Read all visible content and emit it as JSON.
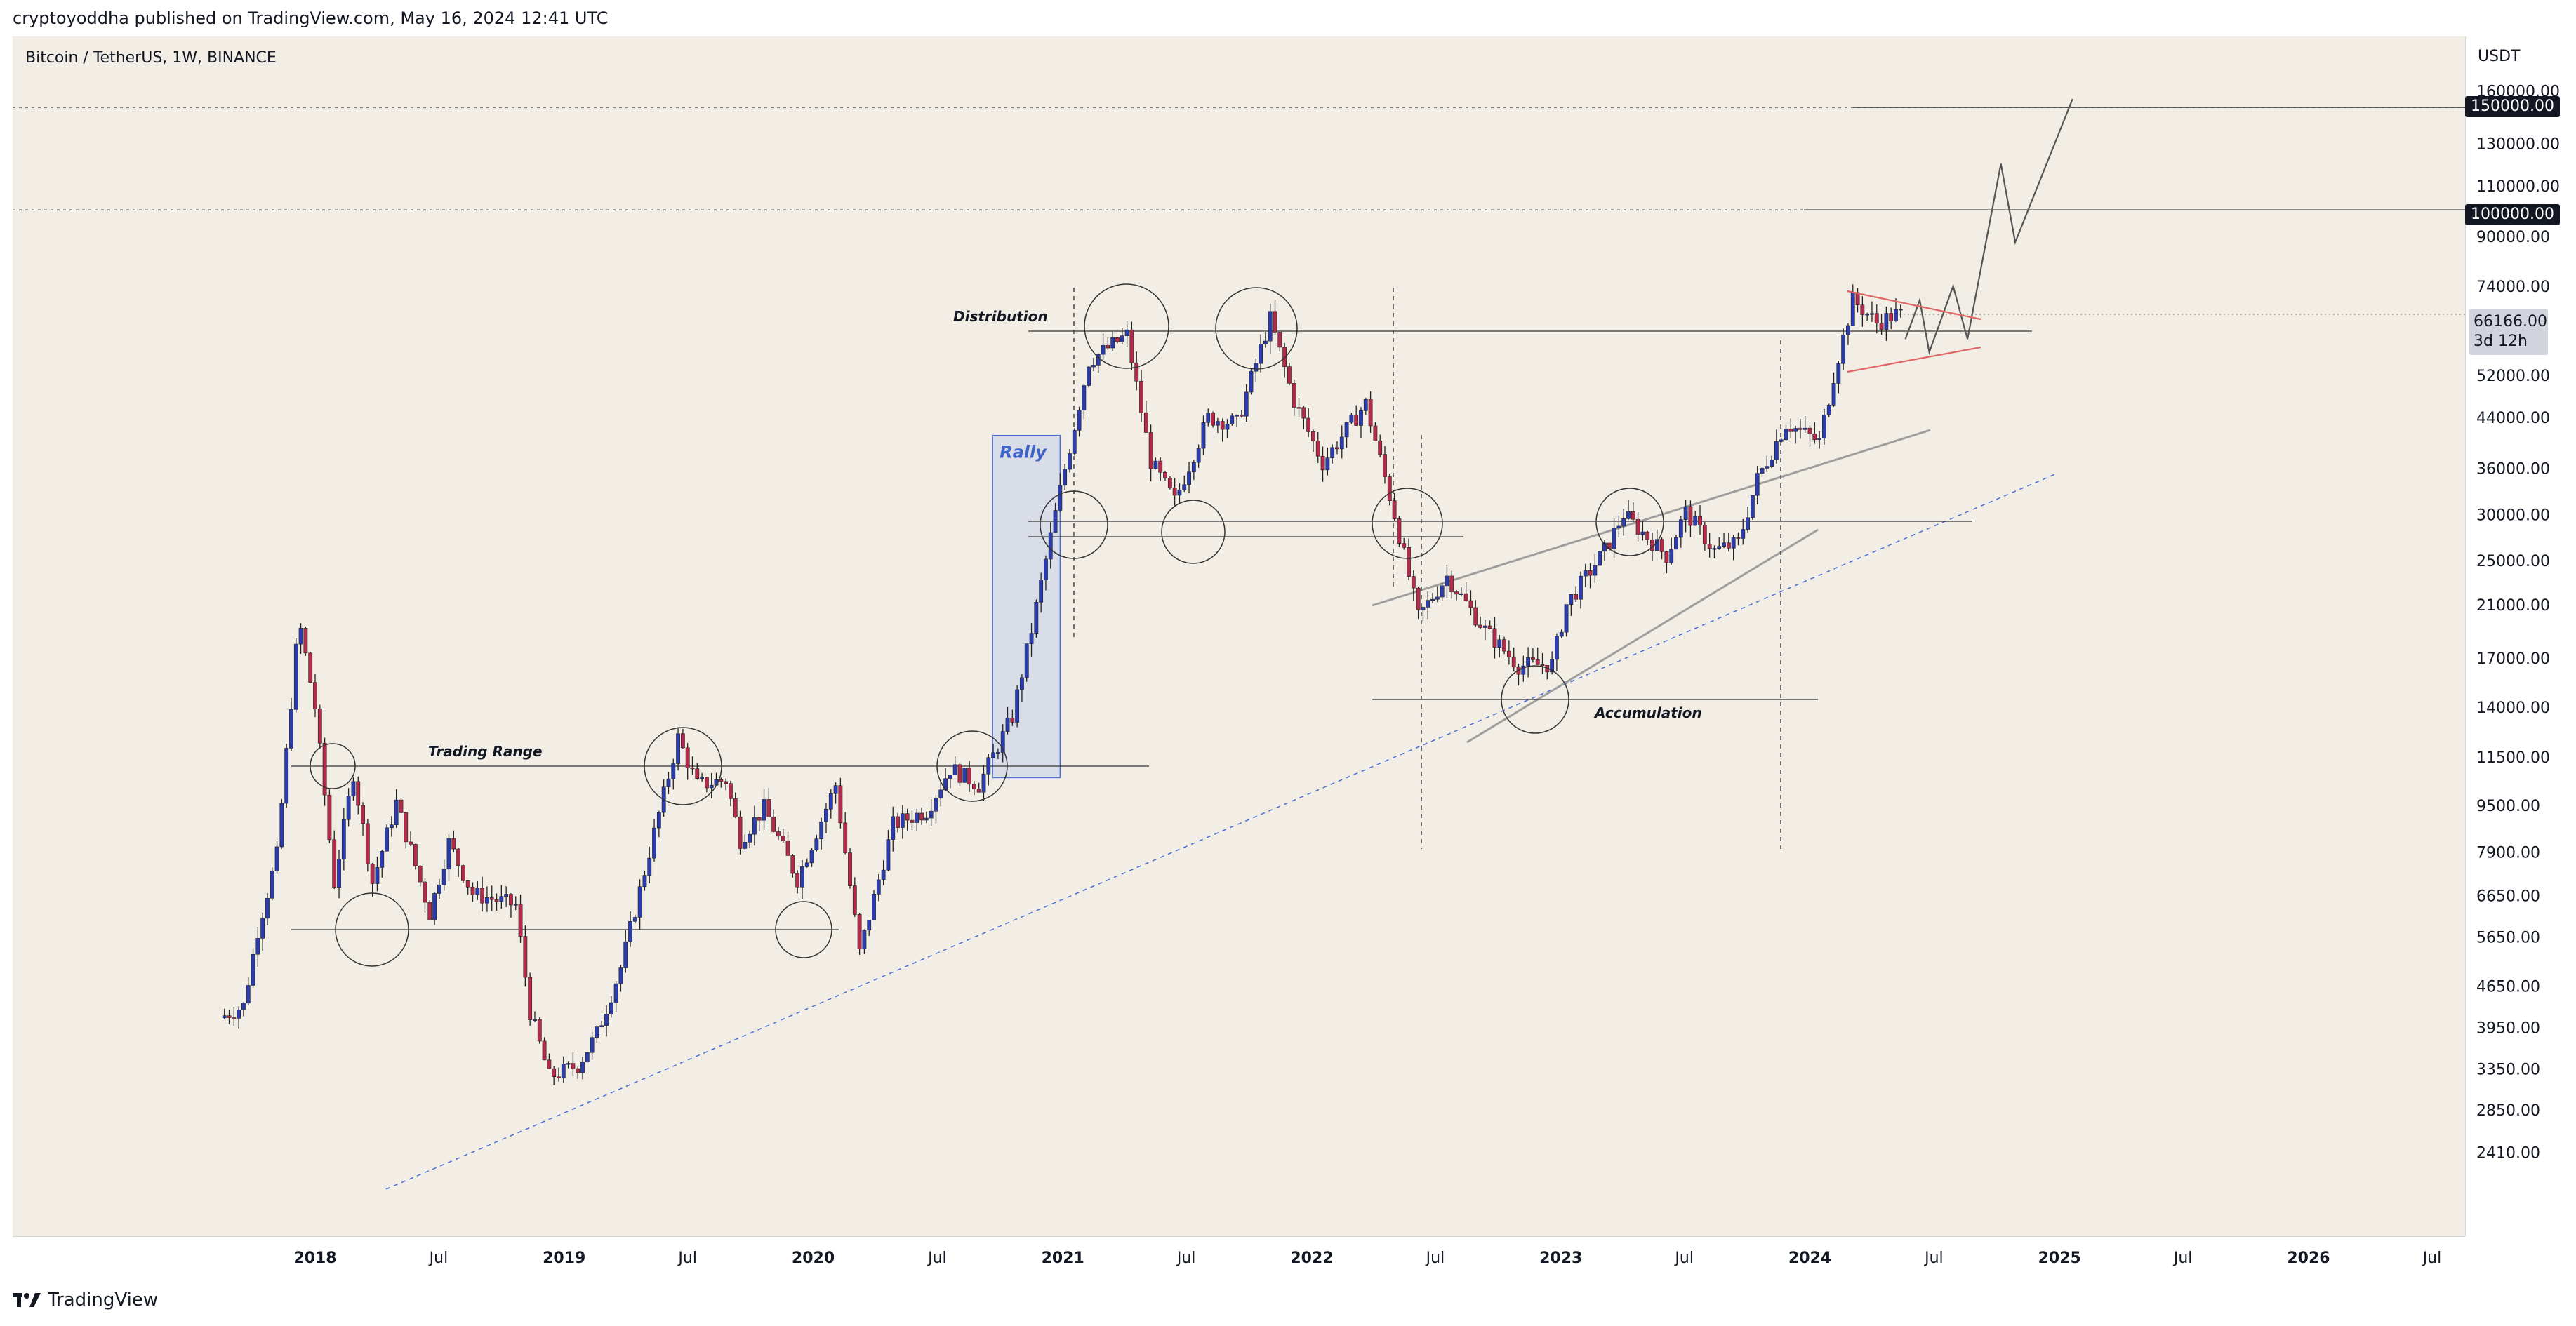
{
  "header": {
    "published_text": "cryptoyoddha published on TradingView.com, May 16, 2024 12:41 UTC"
  },
  "symbol": {
    "description": "Bitcoin / TetherUS, 1W, BINANCE"
  },
  "price_axis": {
    "currency": "USDT",
    "tick_labels": [
      "160000.00",
      "130000.00",
      "110000.00",
      "90000.00",
      "74000.00",
      "52000.00",
      "44000.00",
      "36000.00",
      "30000.00",
      "25000.00",
      "21000.00",
      "17000.00",
      "14000.00",
      "11500.00",
      "9500.00",
      "7900.00",
      "6650.00",
      "5650.00",
      "4650.00",
      "3950.00",
      "3350.00",
      "2850.00",
      "2410.00"
    ],
    "level_tags": [
      "150000.00",
      "100000.00"
    ],
    "current_price": "66166.00",
    "countdown": "3d 12h"
  },
  "time_axis": {
    "tick_labels": [
      "2018",
      "Jul",
      "2019",
      "Jul",
      "2020",
      "Jul",
      "2021",
      "Jul",
      "2022",
      "Jul",
      "2023",
      "Jul",
      "2024",
      "Jul",
      "2025",
      "Jul",
      "2026",
      "Jul"
    ]
  },
  "annotations": {
    "distribution": "Distribution",
    "rally": "Rally",
    "trading_range": "Trading Range",
    "accumulation": "Accumulation"
  },
  "footer": {
    "brand": "TradingView"
  },
  "colors": {
    "up": "#2b3bb0",
    "down": "#b52a4a",
    "background": "#f2eee6",
    "rally_box": "#b7c7eb",
    "trend": "#4a6ed6",
    "wedge": "#e06666"
  },
  "chart_data": {
    "type": "candlestick",
    "title": "",
    "y_scale": "log",
    "ylim": [
      2200,
      165000
    ],
    "xlim": [
      "2017-08-14",
      "2026-09-01"
    ],
    "price_levels": [
      150000,
      100000,
      66166
    ],
    "series": [
      {
        "name": "",
        "points": [
          [
            "2017-08-21",
            4100
          ],
          [
            "2017-09-25",
            4300
          ],
          [
            "2017-10-16",
            5800
          ],
          [
            "2017-11-13",
            7800
          ],
          [
            "2017-12-11",
            17500
          ],
          [
            "2017-12-18",
            19000
          ],
          [
            "2018-01-08",
            14000
          ],
          [
            "2018-02-05",
            7000
          ],
          [
            "2018-03-05",
            10800
          ],
          [
            "2018-04-02",
            7000
          ],
          [
            "2018-05-07",
            9600
          ],
          [
            "2018-06-25",
            6200
          ],
          [
            "2018-07-23",
            8200
          ],
          [
            "2018-08-27",
            6700
          ],
          [
            "2018-10-29",
            6400
          ],
          [
            "2018-11-19",
            4200
          ],
          [
            "2018-12-17",
            3250
          ],
          [
            "2019-01-28",
            3400
          ],
          [
            "2019-02-25",
            3850
          ],
          [
            "2019-04-01",
            5000
          ],
          [
            "2019-05-13",
            7900
          ],
          [
            "2019-06-24",
            12400
          ],
          [
            "2019-07-22",
            10300
          ],
          [
            "2019-09-02",
            10500
          ],
          [
            "2019-09-23",
            8300
          ],
          [
            "2019-10-28",
            9400
          ],
          [
            "2019-12-16",
            7100
          ],
          [
            "2020-02-10",
            10300
          ],
          [
            "2020-03-16",
            5300
          ],
          [
            "2020-05-04",
            8800
          ],
          [
            "2020-06-22",
            9300
          ],
          [
            "2020-07-27",
            11000
          ],
          [
            "2020-09-07",
            10300
          ],
          [
            "2020-10-26",
            13500
          ],
          [
            "2020-11-23",
            19000
          ],
          [
            "2021-01-04",
            33000
          ],
          [
            "2021-02-15",
            55000
          ],
          [
            "2021-04-12",
            61000
          ],
          [
            "2021-05-17",
            37000
          ],
          [
            "2021-06-21",
            31600
          ],
          [
            "2021-08-09",
            44000
          ],
          [
            "2021-09-20",
            43000
          ],
          [
            "2021-11-08",
            65000
          ],
          [
            "2021-12-13",
            47000
          ],
          [
            "2022-01-24",
            36800
          ],
          [
            "2022-03-28",
            46500
          ],
          [
            "2022-05-09",
            30000
          ],
          [
            "2022-06-13",
            20000
          ],
          [
            "2022-07-25",
            23500
          ],
          [
            "2022-09-19",
            19000
          ],
          [
            "2022-11-07",
            16500
          ],
          [
            "2022-12-26",
            16600
          ],
          [
            "2023-01-16",
            21000
          ],
          [
            "2023-03-13",
            26000
          ],
          [
            "2023-04-10",
            30000
          ],
          [
            "2023-06-12",
            25500
          ],
          [
            "2023-07-10",
            30300
          ],
          [
            "2023-08-21",
            26000
          ],
          [
            "2023-09-25",
            26800
          ],
          [
            "2023-10-23",
            34500
          ],
          [
            "2023-12-04",
            43000
          ],
          [
            "2024-01-22",
            40000
          ],
          [
            "2024-02-12",
            52000
          ],
          [
            "2024-03-11",
            70000
          ],
          [
            "2024-04-15",
            64000
          ],
          [
            "2024-05-13",
            66166
          ]
        ]
      }
    ],
    "projection": [
      [
        "2024-05-20",
        60000
      ],
      [
        "2024-06-10",
        70000
      ],
      [
        "2024-06-24",
        57000
      ],
      [
        "2024-07-29",
        74000
      ],
      [
        "2024-08-19",
        60000
      ],
      [
        "2024-10-07",
        120000
      ],
      [
        "2024-10-28",
        88000
      ],
      [
        "2025-01-20",
        155000
      ]
    ],
    "annotations": [
      "Distribution",
      "Rally",
      "Trading Range",
      "Accumulation"
    ],
    "grid": false,
    "legend": "none"
  }
}
